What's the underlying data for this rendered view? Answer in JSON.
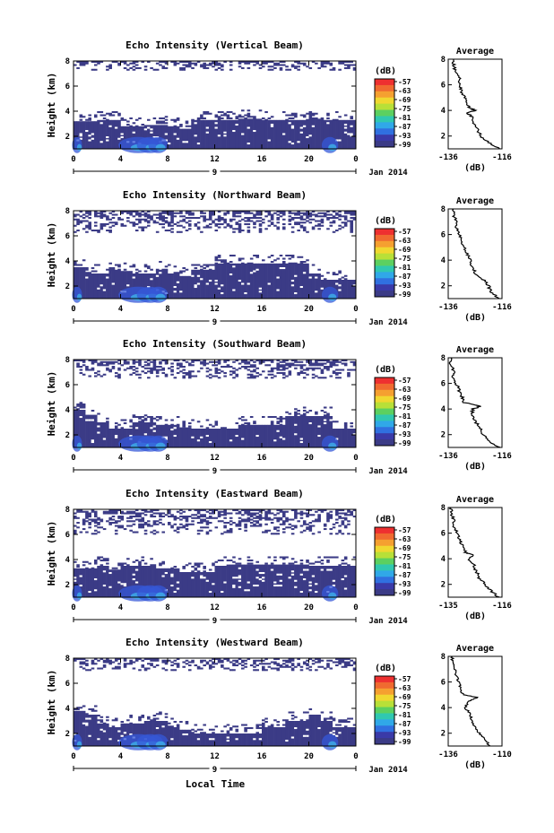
{
  "figure": {
    "xlabel": "Local Time",
    "date_label": "Jan 2014",
    "day_label": "9",
    "ylabel": "Height (km)",
    "colorbar_unit": "(dB)",
    "colorbar_ticks": [
      "-57",
      "-63",
      "-69",
      "-75",
      "-81",
      "-87",
      "-93",
      "-99"
    ],
    "colorbar_colors": [
      "#ee3030",
      "#f06a30",
      "#f5a030",
      "#f0d830",
      "#b8e038",
      "#5cd060",
      "#30c8b0",
      "#30a8e8",
      "#3070e0",
      "#3a3aa8",
      "#3b3b86"
    ],
    "background_color": "#3b3b86"
  },
  "chart_data": [
    {
      "type": "heatmap",
      "title": "Echo Intensity (Vertical Beam)",
      "xlabel": "",
      "ylabel": "Height (km)",
      "xlim": [
        0,
        24
      ],
      "ylim": [
        1,
        8
      ],
      "x_ticks": [
        "0",
        "4",
        "8",
        "12",
        "16",
        "20",
        "0"
      ],
      "y_ticks": [
        "2",
        "4",
        "6",
        "8"
      ],
      "solid_top_km": [
        3.2,
        3.2,
        3.3,
        3.3,
        2.8,
        2.8,
        2.9,
        2.9,
        2.8,
        2.6,
        3.3,
        3.3,
        3.3,
        3.3,
        3.4,
        3.4,
        3.3,
        3.3,
        3.3,
        3.3,
        3.4,
        3.3,
        3.3,
        3.3
      ],
      "sparse_upper_km": [
        7.3,
        8.0
      ],
      "profile": {
        "title": "Average",
        "xlabel": "(dB)",
        "xlim": [
          -136,
          -116
        ],
        "x_ticks": [
          "-136",
          "-116"
        ],
        "y_ticks": [
          "2",
          "4",
          "6",
          "8"
        ],
        "heights_km": [
          1.0,
          1.5,
          2.0,
          2.5,
          3.0,
          3.5,
          3.8,
          4.0,
          4.2,
          4.5,
          5.0,
          5.5,
          6.0,
          6.5,
          7.0,
          7.5,
          8.0
        ],
        "values_db": [
          -117,
          -121,
          -124,
          -125,
          -127,
          -127,
          -129,
          -126,
          -128,
          -129,
          -130,
          -131,
          -132,
          -132,
          -133,
          -134,
          -134
        ]
      }
    },
    {
      "type": "heatmap",
      "title": "Echo Intensity (Northward Beam)",
      "xlabel": "",
      "ylabel": "Height (km)",
      "xlim": [
        0,
        24
      ],
      "ylim": [
        1,
        8
      ],
      "x_ticks": [
        "0",
        "4",
        "8",
        "12",
        "16",
        "20",
        "0"
      ],
      "y_ticks": [
        "2",
        "4",
        "6",
        "8"
      ],
      "solid_top_km": [
        3.5,
        3.0,
        3.0,
        3.3,
        3.2,
        3.0,
        3.0,
        3.3,
        3.0,
        2.8,
        3.3,
        3.3,
        3.8,
        3.8,
        3.8,
        3.8,
        3.8,
        3.8,
        3.8,
        3.8,
        3.0,
        2.5,
        2.5,
        2.5
      ],
      "sparse_upper_km": [
        6.3,
        8.0
      ],
      "profile": {
        "title": "Average",
        "xlabel": "(dB)",
        "xlim": [
          -136,
          -116
        ],
        "x_ticks": [
          "-136",
          "-116"
        ],
        "y_ticks": [
          "2",
          "4",
          "6",
          "8"
        ],
        "heights_km": [
          1.0,
          1.5,
          2.0,
          2.5,
          3.0,
          3.5,
          4.0,
          4.5,
          5.0,
          5.5,
          6.0,
          6.5,
          7.0,
          7.5,
          8.0
        ],
        "values_db": [
          -117,
          -120,
          -121,
          -123,
          -126,
          -127,
          -128,
          -129,
          -130,
          -131,
          -132,
          -133,
          -133,
          -134,
          -134
        ]
      }
    },
    {
      "type": "heatmap",
      "title": "Echo Intensity (Southward Beam)",
      "xlabel": "",
      "ylabel": "Height (km)",
      "xlim": [
        0,
        24
      ],
      "ylim": [
        1,
        8
      ],
      "x_ticks": [
        "0",
        "4",
        "8",
        "12",
        "16",
        "20",
        "0"
      ],
      "y_ticks": [
        "2",
        "4",
        "6",
        "8"
      ],
      "solid_top_km": [
        4.0,
        3.6,
        3.0,
        2.5,
        2.5,
        3.0,
        3.0,
        2.8,
        2.8,
        2.6,
        2.5,
        2.5,
        2.5,
        2.5,
        2.8,
        2.8,
        2.8,
        2.8,
        3.5,
        3.5,
        3.5,
        3.5,
        2.5,
        2.5
      ],
      "sparse_upper_km": [
        6.5,
        8.0
      ],
      "profile": {
        "title": "Average",
        "xlabel": "(dB)",
        "xlim": [
          -136,
          -116
        ],
        "x_ticks": [
          "-136",
          "-116"
        ],
        "y_ticks": [
          "2",
          "4",
          "6",
          "8"
        ],
        "heights_km": [
          1.0,
          1.5,
          2.0,
          2.5,
          3.0,
          3.5,
          4.0,
          4.2,
          4.5,
          5.0,
          5.5,
          6.0,
          6.5,
          7.0,
          7.5,
          8.0
        ],
        "values_db": [
          -117,
          -121,
          -123,
          -124,
          -126,
          -127,
          -127,
          -124,
          -130,
          -131,
          -132,
          -133,
          -134,
          -134,
          -135,
          -135
        ]
      }
    },
    {
      "type": "heatmap",
      "title": "Echo Intensity (Eastward Beam)",
      "xlabel": "",
      "ylabel": "Height (km)",
      "xlim": [
        0,
        24
      ],
      "ylim": [
        1,
        8
      ],
      "x_ticks": [
        "0",
        "4",
        "8",
        "12",
        "16",
        "20",
        "0"
      ],
      "y_ticks": [
        "2",
        "4",
        "6",
        "8"
      ],
      "solid_top_km": [
        3.3,
        3.3,
        3.5,
        3.2,
        3.5,
        3.5,
        3.5,
        3.3,
        3.3,
        3.0,
        3.0,
        3.0,
        3.5,
        3.6,
        3.6,
        3.6,
        3.6,
        3.6,
        3.6,
        3.6,
        3.5,
        3.5,
        3.5,
        3.5
      ],
      "sparse_upper_km": [
        6.0,
        8.0
      ],
      "profile": {
        "title": "Average",
        "xlabel": "(dB)",
        "xlim": [
          -135,
          -116
        ],
        "x_ticks": [
          "-135",
          "-116"
        ],
        "y_ticks": [
          "2",
          "4",
          "6",
          "8"
        ],
        "heights_km": [
          1.0,
          1.5,
          2.0,
          2.5,
          3.0,
          3.5,
          4.0,
          4.3,
          4.5,
          5.0,
          5.5,
          6.0,
          6.5,
          7.0,
          7.5,
          8.0
        ],
        "values_db": [
          -117,
          -120,
          -122,
          -124,
          -125,
          -126,
          -128,
          -126,
          -129,
          -130,
          -131,
          -132,
          -133,
          -133,
          -134,
          -134
        ]
      }
    },
    {
      "type": "heatmap",
      "title": "Echo Intensity (Westward Beam)",
      "xlabel": "Local Time",
      "ylabel": "Height (km)",
      "xlim": [
        0,
        24
      ],
      "ylim": [
        1,
        8
      ],
      "x_ticks": [
        "0",
        "4",
        "8",
        "12",
        "16",
        "20",
        "0"
      ],
      "y_ticks": [
        "2",
        "4",
        "6",
        "8"
      ],
      "solid_top_km": [
        3.8,
        3.5,
        2.8,
        2.5,
        2.8,
        2.8,
        3.0,
        3.0,
        2.5,
        2.3,
        2.0,
        2.0,
        2.0,
        2.0,
        2.0,
        2.0,
        2.5,
        2.5,
        3.0,
        3.0,
        3.5,
        3.0,
        2.5,
        2.5
      ],
      "sparse_upper_km": [
        7.0,
        8.0
      ],
      "profile": {
        "title": "Average",
        "xlabel": "(dB)",
        "xlim": [
          -136,
          -110
        ],
        "x_ticks": [
          "-136",
          "-110"
        ],
        "y_ticks": [
          "2",
          "4",
          "6",
          "8"
        ],
        "heights_km": [
          1.0,
          1.5,
          2.0,
          2.5,
          3.0,
          3.5,
          4.0,
          4.5,
          4.8,
          5.0,
          5.5,
          6.0,
          6.5,
          7.0,
          7.5,
          8.0
        ],
        "values_db": [
          -116,
          -118,
          -121,
          -123,
          -125,
          -125,
          -128,
          -126,
          -122,
          -129,
          -130,
          -131,
          -132,
          -133,
          -134,
          -134
        ]
      }
    }
  ]
}
